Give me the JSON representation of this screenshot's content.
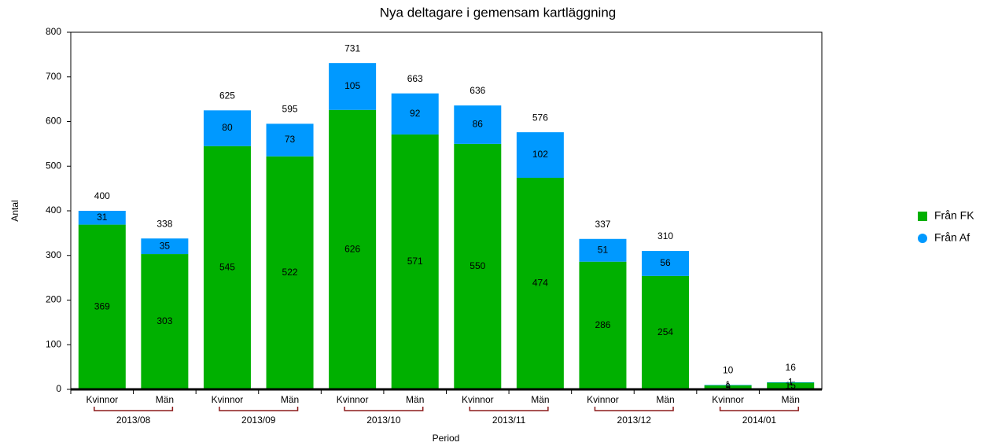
{
  "chart_data": {
    "type": "stacked-bar",
    "title": "Nya deltagare i gemensam kartläggning",
    "y_label": "Antal",
    "x_label": "Period",
    "categories": [
      "Kvinnor",
      "Män",
      "Kvinnor",
      "Män",
      "Kvinnor",
      "Män",
      "Kvinnor",
      "Män",
      "Kvinnor",
      "Män",
      "Kvinnor",
      "Män"
    ],
    "groups": [
      "2013/08",
      "2013/09",
      "2013/10",
      "2013/11",
      "2013/12",
      "2014/01"
    ],
    "series": [
      {
        "name": "Från FK",
        "color": "#00b000",
        "values": [
          369,
          303,
          545,
          522,
          626,
          571,
          550,
          474,
          286,
          254,
          9,
          15
        ]
      },
      {
        "name": "Från Af",
        "color": "#0099ff",
        "values": [
          31,
          35,
          80,
          73,
          105,
          92,
          86,
          102,
          51,
          56,
          1,
          1
        ]
      }
    ],
    "totals": [
      400,
      338,
      625,
      595,
      731,
      663,
      636,
      576,
      337,
      310,
      10,
      16
    ],
    "ylim": [
      0,
      800
    ],
    "yticks": [
      0,
      100,
      200,
      300,
      400,
      500,
      600,
      700,
      800
    ],
    "grid": false,
    "legend": "right"
  }
}
